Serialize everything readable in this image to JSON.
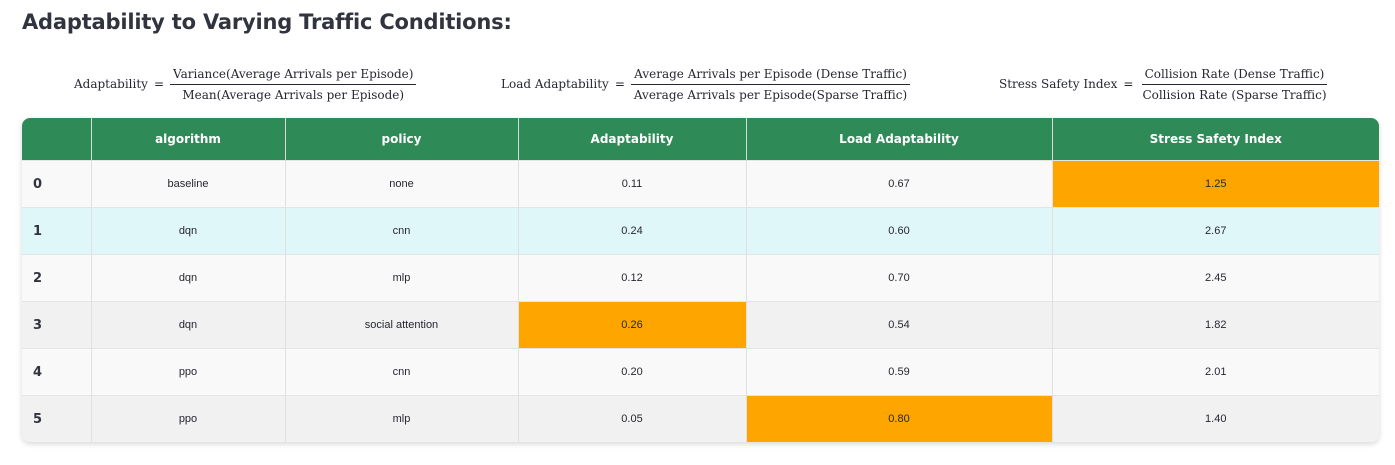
{
  "page": {
    "title": "Adaptability to Varying Traffic Conditions:"
  },
  "formulas": {
    "adaptability": {
      "lhs": "Adaptability",
      "eq": "=",
      "numerator": "Variance(Average Arrivals per Episode)",
      "denominator": "Mean(Average Arrivals per Episode)"
    },
    "load_adaptability": {
      "lhs": "Load Adaptability",
      "eq": "=",
      "numerator": "Average Arrivals per Episode (Dense Traffic)",
      "denominator": "Average Arrivals per Episode(Sparse Traffic)"
    },
    "stress_safety_index": {
      "lhs": "Stress Safety Index",
      "eq": "=",
      "numerator": "Collision Rate (Dense Traffic)",
      "denominator": "Collision Rate (Sparse Traffic)"
    }
  },
  "table": {
    "columns": [
      "",
      "algorithm",
      "policy",
      "Adaptability",
      "Load Adaptability",
      "Stress Safety Index"
    ],
    "rows": [
      {
        "index": "0",
        "algorithm": "baseline",
        "policy": "none",
        "adaptability": "0.11",
        "load_adaptability": "0.67",
        "stress_safety_index": "1.25"
      },
      {
        "index": "1",
        "algorithm": "dqn",
        "policy": "cnn",
        "adaptability": "0.24",
        "load_adaptability": "0.60",
        "stress_safety_index": "2.67"
      },
      {
        "index": "2",
        "algorithm": "dqn",
        "policy": "mlp",
        "adaptability": "0.12",
        "load_adaptability": "0.70",
        "stress_safety_index": "2.45"
      },
      {
        "index": "3",
        "algorithm": "dqn",
        "policy": "social attention",
        "adaptability": "0.26",
        "load_adaptability": "0.54",
        "stress_safety_index": "1.82"
      },
      {
        "index": "4",
        "algorithm": "ppo",
        "policy": "cnn",
        "adaptability": "0.20",
        "load_adaptability": "0.59",
        "stress_safety_index": "2.01"
      },
      {
        "index": "5",
        "algorithm": "ppo",
        "policy": "mlp",
        "adaptability": "0.05",
        "load_adaptability": "0.80",
        "stress_safety_index": "1.40"
      }
    ]
  },
  "colors": {
    "header_bg": "#2e8b57",
    "highlight": "#ffa500",
    "hover_row": "#e0f7fa",
    "row_odd": "#f9f9f9",
    "row_even": "#f1f1f1"
  }
}
